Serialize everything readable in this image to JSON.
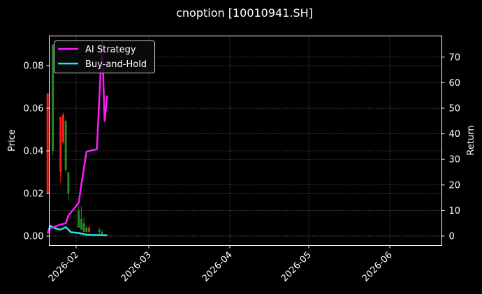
{
  "title": "cnoption [10010941.SH]",
  "colors": {
    "background": "#000000",
    "up": "#228B22",
    "down": "#FF1A1A",
    "ai_strategy": "#FF1AFF",
    "buy_and_hold": "#22E5E5",
    "grid": "#555555",
    "text": "#FFFFFF"
  },
  "legend": {
    "items": [
      {
        "label": "AI Strategy",
        "color": "#FF1AFF"
      },
      {
        "label": "Buy-and-Hold",
        "color": "#22E5E5"
      }
    ]
  },
  "chart_data": {
    "type": "line",
    "title": "cnoption [10010941.SH]",
    "xlabel": "",
    "ylabel": "Price",
    "ylabel_right": "Return",
    "ylim": [
      -0.004,
      0.094
    ],
    "ylim_right": [
      -4,
      78
    ],
    "x_ticks": [
      "2026-02",
      "2026-03",
      "2026-04",
      "2026-05",
      "2026-06"
    ],
    "y_ticks": [
      "0.00",
      "0.02",
      "0.04",
      "0.06",
      "0.08"
    ],
    "y_ticks_right": [
      "0",
      "10",
      "20",
      "30",
      "40",
      "50",
      "60",
      "70"
    ],
    "grid": true,
    "legend_position": "upper left",
    "candlesticks": [
      {
        "date": "2026-01-21",
        "open": 0.067,
        "close": 0.02,
        "high": 0.067,
        "low": 0.02
      },
      {
        "date": "2026-01-23",
        "open": 0.04,
        "close": 0.09,
        "high": 0.09,
        "low": 0.038
      },
      {
        "date": "2026-01-26",
        "open": 0.056,
        "close": 0.03,
        "high": 0.056,
        "low": 0.025
      },
      {
        "date": "2026-01-27",
        "open": 0.057,
        "close": 0.044,
        "high": 0.058,
        "low": 0.043
      },
      {
        "date": "2026-01-28",
        "open": 0.031,
        "close": 0.054,
        "high": 0.055,
        "low": 0.03
      },
      {
        "date": "2026-01-29",
        "open": 0.02,
        "close": 0.03,
        "high": 0.03,
        "low": 0.017
      },
      {
        "date": "2026-02-02",
        "open": 0.004,
        "close": 0.012,
        "high": 0.014,
        "low": 0.004
      },
      {
        "date": "2026-02-03",
        "open": 0.003,
        "close": 0.008,
        "high": 0.014,
        "low": 0.003
      },
      {
        "date": "2026-02-04",
        "open": 0.002,
        "close": 0.006,
        "high": 0.009,
        "low": 0.002
      },
      {
        "date": "2026-02-05",
        "open": 0.002,
        "close": 0.004,
        "high": 0.005,
        "low": 0.001
      },
      {
        "date": "2026-02-06",
        "open": 0.004,
        "close": 0.002,
        "high": 0.005,
        "low": 0.001
      },
      {
        "date": "2026-02-10",
        "open": 0.002,
        "close": 0.003,
        "high": 0.004,
        "low": 0.001
      },
      {
        "date": "2026-02-11",
        "open": 0.001,
        "close": 0.002,
        "high": 0.003,
        "low": 0.001
      }
    ],
    "series": [
      {
        "name": "AI Strategy",
        "axis": "right",
        "x": [
          "2026-01-21",
          "2026-01-22",
          "2026-01-26",
          "2026-01-28",
          "2026-01-29",
          "2026-02-02",
          "2026-02-03",
          "2026-02-05",
          "2026-02-09",
          "2026-02-11",
          "2026-02-12",
          "2026-02-13"
        ],
        "values": [
          1.0,
          3.0,
          4.5,
          5.0,
          8.0,
          13.0,
          20.0,
          33.0,
          34.0,
          76.0,
          45.0,
          55.0
        ]
      },
      {
        "name": "Buy-and-Hold",
        "axis": "right",
        "x": [
          "2026-01-21",
          "2026-01-22",
          "2026-01-24",
          "2026-01-26",
          "2026-01-28",
          "2026-01-30",
          "2026-02-02",
          "2026-02-05",
          "2026-02-09",
          "2026-02-13"
        ],
        "values": [
          1.0,
          4.0,
          3.0,
          2.5,
          3.5,
          1.5,
          1.2,
          0.5,
          0.4,
          0.3
        ]
      }
    ]
  }
}
